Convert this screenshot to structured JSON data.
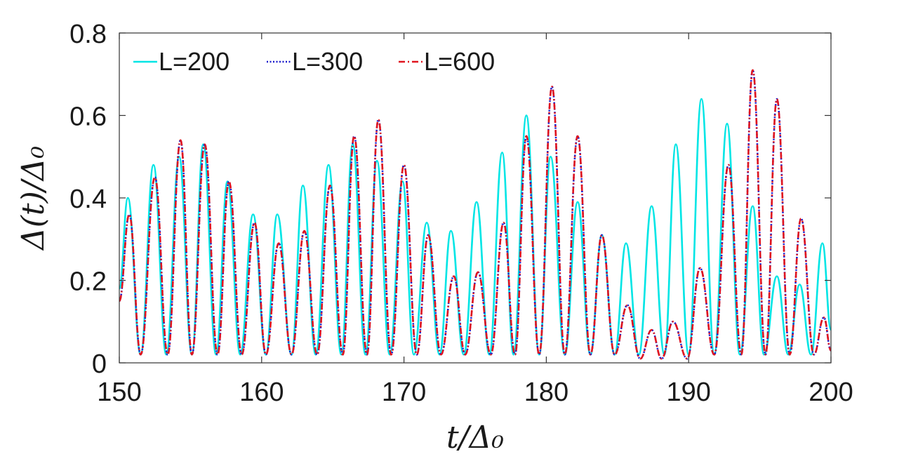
{
  "chart_data": {
    "type": "line",
    "xlabel": "t/Δ₀",
    "ylabel": "Δ(t)/Δ₀",
    "xlim": [
      150,
      200
    ],
    "ylim": [
      0,
      0.8
    ],
    "xticks": [
      150,
      160,
      170,
      180,
      190,
      200
    ],
    "yticks": [
      0,
      0.2,
      0.4,
      0.6,
      0.8
    ],
    "xtick_labels": [
      "150",
      "160",
      "170",
      "180",
      "190",
      "200"
    ],
    "ytick_labels": [
      "0",
      "0.2",
      "0.4",
      "0.6",
      "0.8"
    ],
    "grid": false,
    "box": true,
    "legend": "top-left, horizontal",
    "series": [
      {
        "name": "L=200",
        "color": "#00e5e5",
        "style": "solid",
        "values": [
          [
            150.0,
            0.18
          ],
          [
            150.6,
            0.4
          ],
          [
            151.5,
            0.02
          ],
          [
            152.4,
            0.48
          ],
          [
            153.3,
            0.02
          ],
          [
            154.2,
            0.5
          ],
          [
            155.1,
            0.02
          ],
          [
            155.9,
            0.53
          ],
          [
            156.8,
            0.02
          ],
          [
            157.6,
            0.44
          ],
          [
            158.5,
            0.02
          ],
          [
            159.4,
            0.36
          ],
          [
            160.3,
            0.02
          ],
          [
            161.1,
            0.36
          ],
          [
            162.1,
            0.02
          ],
          [
            162.9,
            0.43
          ],
          [
            163.8,
            0.02
          ],
          [
            164.7,
            0.48
          ],
          [
            165.6,
            0.02
          ],
          [
            166.4,
            0.53
          ],
          [
            167.3,
            0.02
          ],
          [
            168.1,
            0.49
          ],
          [
            169.0,
            0.02
          ],
          [
            169.9,
            0.44
          ],
          [
            170.7,
            0.02
          ],
          [
            171.6,
            0.34
          ],
          [
            172.5,
            0.02
          ],
          [
            173.3,
            0.32
          ],
          [
            174.2,
            0.02
          ],
          [
            175.1,
            0.39
          ],
          [
            176.0,
            0.02
          ],
          [
            176.9,
            0.51
          ],
          [
            177.7,
            0.02
          ],
          [
            178.6,
            0.6
          ],
          [
            179.5,
            0.02
          ],
          [
            180.3,
            0.5
          ],
          [
            181.3,
            0.02
          ],
          [
            182.2,
            0.39
          ],
          [
            183.1,
            0.02
          ],
          [
            183.9,
            0.31
          ],
          [
            184.8,
            0.02
          ],
          [
            185.6,
            0.29
          ],
          [
            186.5,
            0.02
          ],
          [
            187.4,
            0.38
          ],
          [
            188.3,
            0.02
          ],
          [
            189.1,
            0.53
          ],
          [
            190.0,
            0.02
          ],
          [
            190.9,
            0.64
          ],
          [
            191.8,
            0.02
          ],
          [
            192.7,
            0.58
          ],
          [
            193.6,
            0.02
          ],
          [
            194.5,
            0.38
          ],
          [
            195.3,
            0.02
          ],
          [
            196.2,
            0.21
          ],
          [
            197.0,
            0.02
          ],
          [
            197.8,
            0.19
          ],
          [
            198.6,
            0.02
          ],
          [
            199.4,
            0.29
          ],
          [
            200.0,
            0.08
          ]
        ]
      },
      {
        "name": "L=300",
        "color": "#1a1acc",
        "style": "dotted",
        "values": [
          [
            150.0,
            0.15
          ],
          [
            150.7,
            0.36
          ],
          [
            151.5,
            0.02
          ],
          [
            152.5,
            0.45
          ],
          [
            153.4,
            0.02
          ],
          [
            154.3,
            0.54
          ],
          [
            155.1,
            0.02
          ],
          [
            156.0,
            0.53
          ],
          [
            156.9,
            0.02
          ],
          [
            157.7,
            0.44
          ],
          [
            158.6,
            0.02
          ],
          [
            159.5,
            0.34
          ],
          [
            160.3,
            0.02
          ],
          [
            161.2,
            0.29
          ],
          [
            162.1,
            0.02
          ],
          [
            163.0,
            0.32
          ],
          [
            163.9,
            0.02
          ],
          [
            164.8,
            0.43
          ],
          [
            165.7,
            0.02
          ],
          [
            166.5,
            0.55
          ],
          [
            167.4,
            0.02
          ],
          [
            168.2,
            0.59
          ],
          [
            169.1,
            0.02
          ],
          [
            170.0,
            0.48
          ],
          [
            170.9,
            0.02
          ],
          [
            171.7,
            0.31
          ],
          [
            172.6,
            0.02
          ],
          [
            173.5,
            0.21
          ],
          [
            174.3,
            0.02
          ],
          [
            175.2,
            0.22
          ],
          [
            176.1,
            0.02
          ],
          [
            177.0,
            0.34
          ],
          [
            177.8,
            0.02
          ],
          [
            178.6,
            0.55
          ],
          [
            179.5,
            0.02
          ],
          [
            180.4,
            0.67
          ],
          [
            181.3,
            0.02
          ],
          [
            182.2,
            0.55
          ],
          [
            183.1,
            0.02
          ],
          [
            183.9,
            0.31
          ],
          [
            184.8,
            0.02
          ],
          [
            185.7,
            0.14
          ],
          [
            186.6,
            0.01
          ],
          [
            187.4,
            0.08
          ],
          [
            188.1,
            0.01
          ],
          [
            188.9,
            0.1
          ],
          [
            189.9,
            0.01
          ],
          [
            190.8,
            0.23
          ],
          [
            191.8,
            0.02
          ],
          [
            192.8,
            0.48
          ],
          [
            193.7,
            0.02
          ],
          [
            194.5,
            0.71
          ],
          [
            195.4,
            0.02
          ],
          [
            196.2,
            0.64
          ],
          [
            197.1,
            0.02
          ],
          [
            197.9,
            0.35
          ],
          [
            198.8,
            0.02
          ],
          [
            199.5,
            0.11
          ],
          [
            200.0,
            0.03
          ]
        ]
      },
      {
        "name": "L=600",
        "color": "#e0141e",
        "style": "dashdot",
        "values": [
          [
            150.0,
            0.15
          ],
          [
            150.7,
            0.36
          ],
          [
            151.5,
            0.02
          ],
          [
            152.5,
            0.45
          ],
          [
            153.4,
            0.02
          ],
          [
            154.3,
            0.54
          ],
          [
            155.1,
            0.02
          ],
          [
            156.0,
            0.53
          ],
          [
            156.9,
            0.02
          ],
          [
            157.7,
            0.44
          ],
          [
            158.6,
            0.02
          ],
          [
            159.5,
            0.34
          ],
          [
            160.3,
            0.02
          ],
          [
            161.2,
            0.29
          ],
          [
            162.1,
            0.02
          ],
          [
            163.0,
            0.32
          ],
          [
            163.9,
            0.02
          ],
          [
            164.8,
            0.43
          ],
          [
            165.7,
            0.02
          ],
          [
            166.5,
            0.55
          ],
          [
            167.4,
            0.02
          ],
          [
            168.2,
            0.59
          ],
          [
            169.1,
            0.02
          ],
          [
            170.0,
            0.48
          ],
          [
            170.9,
            0.02
          ],
          [
            171.7,
            0.31
          ],
          [
            172.6,
            0.02
          ],
          [
            173.5,
            0.21
          ],
          [
            174.3,
            0.02
          ],
          [
            175.2,
            0.22
          ],
          [
            176.1,
            0.02
          ],
          [
            177.0,
            0.34
          ],
          [
            177.8,
            0.02
          ],
          [
            178.6,
            0.55
          ],
          [
            179.5,
            0.02
          ],
          [
            180.4,
            0.67
          ],
          [
            181.3,
            0.02
          ],
          [
            182.2,
            0.55
          ],
          [
            183.1,
            0.02
          ],
          [
            183.9,
            0.31
          ],
          [
            184.8,
            0.02
          ],
          [
            185.7,
            0.14
          ],
          [
            186.6,
            0.01
          ],
          [
            187.4,
            0.08
          ],
          [
            188.1,
            0.01
          ],
          [
            188.9,
            0.1
          ],
          [
            189.9,
            0.01
          ],
          [
            190.8,
            0.23
          ],
          [
            191.8,
            0.02
          ],
          [
            192.8,
            0.48
          ],
          [
            193.7,
            0.02
          ],
          [
            194.5,
            0.71
          ],
          [
            195.4,
            0.02
          ],
          [
            196.2,
            0.64
          ],
          [
            197.1,
            0.02
          ],
          [
            197.9,
            0.35
          ],
          [
            198.8,
            0.02
          ],
          [
            199.5,
            0.11
          ],
          [
            200.0,
            0.03
          ]
        ]
      }
    ]
  }
}
